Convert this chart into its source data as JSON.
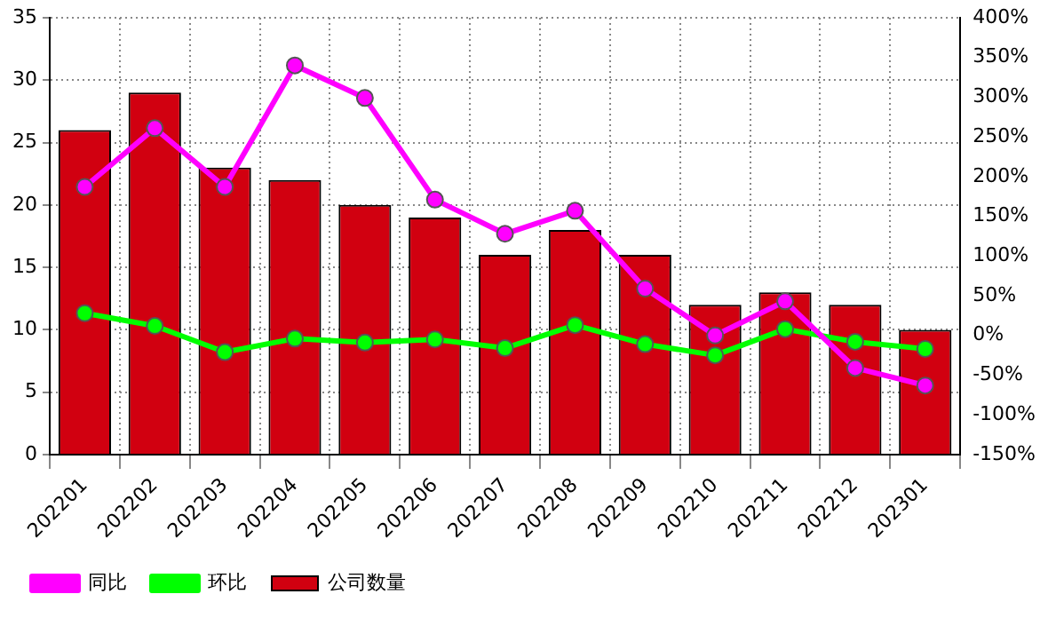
{
  "chart_data": {
    "type": "bar",
    "categories": [
      "202201",
      "202202",
      "202203",
      "202204",
      "202205",
      "202206",
      "202207",
      "202208",
      "202209",
      "202210",
      "202211",
      "202212",
      "202301"
    ],
    "series": [
      {
        "name": "同比",
        "type": "line",
        "axis": "y2",
        "color": "#ff00ff",
        "values": [
          187,
          261,
          187,
          340,
          299,
          171,
          128,
          157,
          59,
          0,
          43,
          -41,
          -63
        ]
      },
      {
        "name": "环比",
        "type": "line",
        "axis": "y2",
        "color": "#00ff00",
        "values": [
          28,
          12,
          -21,
          -4,
          -9,
          -5,
          -16,
          13,
          -11,
          -25,
          8,
          -8,
          -17
        ]
      },
      {
        "name": "公司数量",
        "color": "#d10010",
        "values": [
          26,
          29,
          23,
          22,
          20,
          19,
          16,
          18,
          16,
          12,
          13,
          12,
          10
        ]
      }
    ],
    "ylim": [
      0,
      35
    ],
    "yticks": [
      0,
      5,
      10,
      15,
      20,
      25,
      30,
      35
    ],
    "y2lim": [
      -150,
      400
    ],
    "y2ticks": [
      {
        "value": -150,
        "label": "-150%"
      },
      {
        "value": -100,
        "label": "-100%"
      },
      {
        "value": -50,
        "label": "-50%"
      },
      {
        "value": 0,
        "label": "0%"
      },
      {
        "value": 50,
        "label": "50%"
      },
      {
        "value": 100,
        "label": "100%"
      },
      {
        "value": 150,
        "label": "150%"
      },
      {
        "value": 200,
        "label": "200%"
      },
      {
        "value": 250,
        "label": "250%"
      },
      {
        "value": 300,
        "label": "300%"
      },
      {
        "value": 350,
        "label": "350%"
      },
      {
        "value": 400,
        "label": "400%"
      }
    ],
    "grid": true,
    "legend": "bottom",
    "marker": "circle"
  }
}
